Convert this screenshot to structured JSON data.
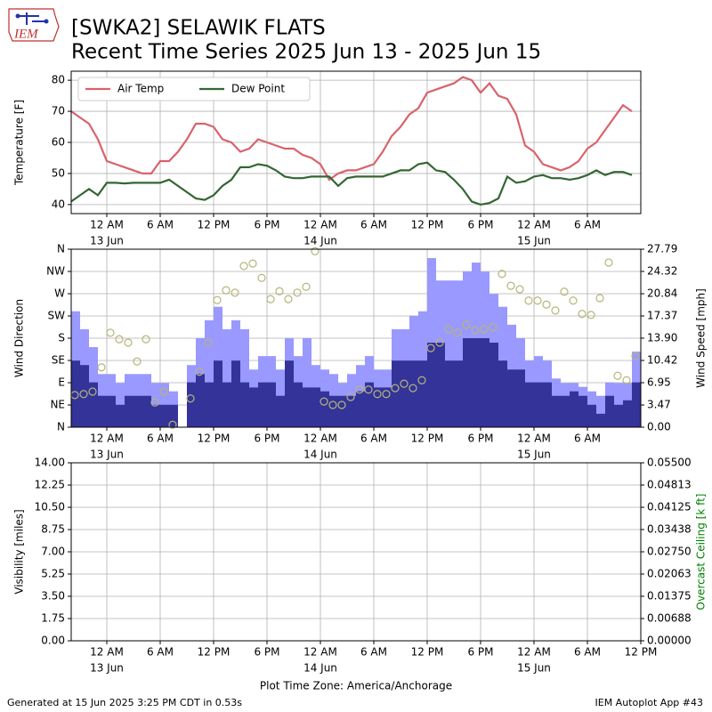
{
  "title": [
    "[SWKA2] SELAWIK FLATS",
    "Recent Time Series 2025 Jun 13 - 2025 Jun 15"
  ],
  "logo_text": "IEM",
  "footer": {
    "left": "Generated at 15 Jun 2025 3:25 PM CDT in 0.53s",
    "right": "IEM Autoplot App #43"
  },
  "chart_data": [
    {
      "type": "line",
      "ylabel": "Temperature [F]",
      "legend": "upper left",
      "grid": true,
      "xlim": [
        "2025-06-12T20:00",
        "2025-06-15T12:00"
      ],
      "xticks": [
        {
          "value": "2025-06-13T00:00",
          "label": "12 AM",
          "sublabel": "13 Jun"
        },
        {
          "value": "2025-06-13T06:00",
          "label": "6 AM"
        },
        {
          "value": "2025-06-13T12:00",
          "label": "12 PM"
        },
        {
          "value": "2025-06-13T18:00",
          "label": "6 PM"
        },
        {
          "value": "2025-06-14T00:00",
          "label": "12 AM",
          "sublabel": "14 Jun"
        },
        {
          "value": "2025-06-14T06:00",
          "label": "6 AM"
        },
        {
          "value": "2025-06-14T12:00",
          "label": "12 PM"
        },
        {
          "value": "2025-06-14T18:00",
          "label": "6 PM"
        },
        {
          "value": "2025-06-15T00:00",
          "label": "12 AM",
          "sublabel": "15 Jun"
        },
        {
          "value": "2025-06-15T06:00",
          "label": "6 AM"
        }
      ],
      "ylim": [
        37.1,
        82.9
      ],
      "yticks": [
        40,
        50,
        60,
        70,
        80
      ],
      "x": [
        "2025-06-12T20:00",
        "2025-06-12T21:00",
        "2025-06-12T22:00",
        "2025-06-12T23:00",
        "2025-06-13T00:00",
        "2025-06-13T01:00",
        "2025-06-13T02:00",
        "2025-06-13T03:00",
        "2025-06-13T04:00",
        "2025-06-13T05:00",
        "2025-06-13T06:00",
        "2025-06-13T07:00",
        "2025-06-13T08:00",
        "2025-06-13T09:00",
        "2025-06-13T10:00",
        "2025-06-13T11:00",
        "2025-06-13T12:00",
        "2025-06-13T13:00",
        "2025-06-13T14:00",
        "2025-06-13T15:00",
        "2025-06-13T16:00",
        "2025-06-13T17:00",
        "2025-06-13T18:00",
        "2025-06-13T19:00",
        "2025-06-13T20:00",
        "2025-06-13T21:00",
        "2025-06-13T22:00",
        "2025-06-13T23:00",
        "2025-06-14T00:00",
        "2025-06-14T01:00",
        "2025-06-14T02:00",
        "2025-06-14T03:00",
        "2025-06-14T04:00",
        "2025-06-14T05:00",
        "2025-06-14T06:00",
        "2025-06-14T07:00",
        "2025-06-14T08:00",
        "2025-06-14T09:00",
        "2025-06-14T10:00",
        "2025-06-14T11:00",
        "2025-06-14T12:00",
        "2025-06-14T13:00",
        "2025-06-14T14:00",
        "2025-06-14T15:00",
        "2025-06-14T16:00",
        "2025-06-14T17:00",
        "2025-06-14T18:00",
        "2025-06-14T19:00",
        "2025-06-14T20:00",
        "2025-06-14T21:00",
        "2025-06-14T22:00",
        "2025-06-14T23:00",
        "2025-06-15T00:00",
        "2025-06-15T01:00",
        "2025-06-15T02:00",
        "2025-06-15T03:00",
        "2025-06-15T04:00",
        "2025-06-15T05:00",
        "2025-06-15T06:00",
        "2025-06-15T07:00",
        "2025-06-15T08:00",
        "2025-06-15T09:00",
        "2025-06-15T10:00",
        "2025-06-15T11:00"
      ],
      "series": [
        {
          "name": "Air Temp",
          "color": "#d9626b",
          "values": [
            70,
            68,
            66,
            61,
            54,
            53,
            52,
            51,
            50,
            50,
            54,
            54,
            57,
            61,
            66,
            66,
            65,
            61,
            60,
            57,
            58,
            61,
            60,
            59,
            58,
            58,
            56,
            55,
            53,
            48,
            50,
            51,
            51,
            52,
            53,
            57,
            62,
            65,
            69,
            71,
            76,
            77,
            78,
            79,
            81,
            80,
            76,
            79,
            75,
            74,
            69,
            59,
            57,
            53,
            52,
            51,
            52,
            54,
            58,
            60,
            64,
            68,
            72,
            70
          ]
        },
        {
          "name": "Dew Point",
          "color": "#336633",
          "values": [
            41,
            43,
            45,
            43,
            47,
            47,
            46.8,
            47,
            47,
            47,
            47,
            48,
            46,
            44,
            42,
            41.5,
            43,
            46,
            48,
            52,
            52,
            53,
            52.5,
            51,
            49,
            48.5,
            48.5,
            49,
            49,
            49,
            46,
            48.5,
            49,
            49,
            49,
            49,
            50,
            51,
            51,
            53,
            53.5,
            51,
            50.5,
            48,
            45,
            41,
            40,
            40.5,
            42,
            49,
            47,
            47.5,
            49,
            49.5,
            48.5,
            48.5,
            48,
            48.5,
            49.5,
            51,
            49.5,
            50.5,
            50.5,
            49.5
          ]
        }
      ]
    },
    {
      "type": "wind",
      "ylabel": "Wind Direction",
      "y2label": "Wind Speed [mph]",
      "grid": true,
      "xlim": [
        "2025-06-12T20:00",
        "2025-06-15T12:00"
      ],
      "xticks": [
        {
          "value": "2025-06-13T00:00",
          "label": "12 AM",
          "sublabel": "13 Jun"
        },
        {
          "value": "2025-06-13T06:00",
          "label": "6 AM"
        },
        {
          "value": "2025-06-13T12:00",
          "label": "12 PM"
        },
        {
          "value": "2025-06-13T18:00",
          "label": "6 PM"
        },
        {
          "value": "2025-06-14T00:00",
          "label": "12 AM",
          "sublabel": "14 Jun"
        },
        {
          "value": "2025-06-14T06:00",
          "label": "6 AM"
        },
        {
          "value": "2025-06-14T12:00",
          "label": "12 PM"
        },
        {
          "value": "2025-06-14T18:00",
          "label": "6 PM"
        },
        {
          "value": "2025-06-15T00:00",
          "label": "12 AM",
          "sublabel": "15 Jun"
        },
        {
          "value": "2025-06-15T06:00",
          "label": "6 AM"
        }
      ],
      "ylim": [
        0,
        360
      ],
      "yticks": [
        {
          "value": 0,
          "label": "N"
        },
        {
          "value": 45,
          "label": "NE"
        },
        {
          "value": 90,
          "label": "E"
        },
        {
          "value": 135,
          "label": "SE"
        },
        {
          "value": 180,
          "label": "S"
        },
        {
          "value": 225,
          "label": "SW"
        },
        {
          "value": 270,
          "label": "W"
        },
        {
          "value": 315,
          "label": "NW"
        },
        {
          "value": 360,
          "label": "N"
        }
      ],
      "y2lim": [
        0,
        27.79
      ],
      "y2ticks": [
        {
          "value": 0,
          "label": "0.00"
        },
        3.47,
        6.95,
        10.42,
        {
          "value": 13.9,
          "label": "13.90"
        },
        17.37,
        20.84,
        24.32,
        27.79
      ],
      "x": [
        "2025-06-12T20:00",
        "2025-06-12T21:00",
        "2025-06-12T22:00",
        "2025-06-12T23:00",
        "2025-06-13T00:00",
        "2025-06-13T01:00",
        "2025-06-13T02:00",
        "2025-06-13T03:00",
        "2025-06-13T04:00",
        "2025-06-13T05:00",
        "2025-06-13T06:00",
        "2025-06-13T07:00",
        "2025-06-13T08:00",
        "2025-06-13T09:00",
        "2025-06-13T10:00",
        "2025-06-13T11:00",
        "2025-06-13T12:00",
        "2025-06-13T13:00",
        "2025-06-13T14:00",
        "2025-06-13T15:00",
        "2025-06-13T16:00",
        "2025-06-13T17:00",
        "2025-06-13T18:00",
        "2025-06-13T19:00",
        "2025-06-13T20:00",
        "2025-06-13T21:00",
        "2025-06-13T22:00",
        "2025-06-13T23:00",
        "2025-06-14T00:00",
        "2025-06-14T01:00",
        "2025-06-14T02:00",
        "2025-06-14T03:00",
        "2025-06-14T04:00",
        "2025-06-14T05:00",
        "2025-06-14T06:00",
        "2025-06-14T07:00",
        "2025-06-14T08:00",
        "2025-06-14T09:00",
        "2025-06-14T10:00",
        "2025-06-14T11:00",
        "2025-06-14T12:00",
        "2025-06-14T13:00",
        "2025-06-14T14:00",
        "2025-06-14T15:00",
        "2025-06-14T16:00",
        "2025-06-14T17:00",
        "2025-06-14T18:00",
        "2025-06-14T19:00",
        "2025-06-14T20:00",
        "2025-06-14T21:00",
        "2025-06-14T22:00",
        "2025-06-14T23:00",
        "2025-06-15T00:00",
        "2025-06-15T01:00",
        "2025-06-15T02:00",
        "2025-06-15T03:00",
        "2025-06-15T04:00",
        "2025-06-15T05:00",
        "2025-06-15T06:00",
        "2025-06-15T07:00",
        "2025-06-15T08:00",
        "2025-06-15T09:00",
        "2025-06-15T10:00",
        "2025-06-15T11:00"
      ],
      "series": [
        {
          "kind": "bar",
          "axis": "y2",
          "color": "#9999ff",
          "values": [
            18.1,
            15.3,
            12.5,
            8.3,
            8.3,
            6.9,
            8.3,
            8.3,
            8.3,
            6.9,
            6.9,
            5.6,
            null,
            9.7,
            13.9,
            16.7,
            18.8,
            15.3,
            16.7,
            15.3,
            9,
            11.1,
            11.1,
            9,
            13.9,
            11.1,
            13.9,
            9.7,
            9,
            8.3,
            6.9,
            8.3,
            9.7,
            11.1,
            9,
            9,
            15.3,
            15.3,
            17.4,
            18.1,
            26.4,
            22.9,
            22.9,
            22.9,
            24.3,
            25.7,
            24.3,
            20.8,
            18.8,
            16,
            13.9,
            10.4,
            11.1,
            10.4,
            7.6,
            6.9,
            6.9,
            6.3,
            5.6,
            4.9,
            7,
            6.9,
            6.9,
            11.8
          ]
        },
        {
          "kind": "bar",
          "axis": "y2",
          "color": "#333399",
          "values": [
            10.4,
            9.7,
            7,
            4.9,
            4.9,
            3.5,
            4.9,
            4.9,
            4.9,
            3.5,
            3.5,
            3.5,
            null,
            7,
            8.3,
            7,
            10.4,
            7,
            10.4,
            7,
            6.2,
            7,
            7,
            4.9,
            10.4,
            7,
            6.2,
            6.2,
            5.6,
            4.9,
            4.9,
            4.9,
            5.6,
            7,
            6.2,
            6.2,
            10.4,
            10.4,
            10.4,
            10.4,
            13.2,
            13.2,
            10.4,
            10.4,
            13.9,
            13.9,
            13.9,
            13.2,
            10.4,
            9,
            9,
            7,
            7,
            7,
            4.9,
            4.9,
            5.6,
            4.9,
            3.5,
            2.1,
            4.9,
            3.5,
            4.2,
            7
          ]
        },
        {
          "kind": "scatter",
          "axis": "y",
          "color": "#b5b57a",
          "values": [
            65,
            67,
            72,
            121,
            191,
            178,
            171,
            133,
            178,
            50,
            72,
            5,
            null,
            58,
            112,
            171,
            257,
            277,
            272,
            326,
            331,
            302,
            259,
            275,
            259,
            272,
            284,
            356,
            52,
            45,
            45,
            61,
            76,
            76,
            67,
            67,
            79,
            88,
            79,
            95,
            160,
            171,
            198,
            191,
            207,
            196,
            198,
            202,
            310,
            286,
            279,
            256,
            256,
            248,
            236,
            274,
            256,
            229,
            227,
            261,
            333,
            104,
            95,
            144
          ]
        }
      ]
    },
    {
      "type": "line",
      "ylabel": "Visibility [miles]",
      "y2label": "Overcast Ceiling [k ft]",
      "y2label_color": "#008000",
      "grid": true,
      "xlabel": "Plot Time Zone: America/Anchorage",
      "xlim": [
        "2025-06-12T20:00",
        "2025-06-15T12:00"
      ],
      "xticks": [
        {
          "value": "2025-06-13T00:00",
          "label": "12 AM",
          "sublabel": "13 Jun"
        },
        {
          "value": "2025-06-13T06:00",
          "label": "6 AM"
        },
        {
          "value": "2025-06-13T12:00",
          "label": "12 PM"
        },
        {
          "value": "2025-06-13T18:00",
          "label": "6 PM"
        },
        {
          "value": "2025-06-14T00:00",
          "label": "12 AM",
          "sublabel": "14 Jun"
        },
        {
          "value": "2025-06-14T06:00",
          "label": "6 AM"
        },
        {
          "value": "2025-06-14T12:00",
          "label": "12 PM"
        },
        {
          "value": "2025-06-14T18:00",
          "label": "6 PM"
        },
        {
          "value": "2025-06-15T00:00",
          "label": "12 AM",
          "sublabel": "15 Jun"
        },
        {
          "value": "2025-06-15T06:00",
          "label": "6 AM"
        },
        {
          "value": "2025-06-15T12:00",
          "label": "12 PM"
        }
      ],
      "ylim": [
        0,
        14
      ],
      "yticks": [
        {
          "value": 0,
          "label": "0.00"
        },
        1.75,
        {
          "value": 3.5,
          "label": "3.50"
        },
        5.25,
        {
          "value": 7,
          "label": "7.00"
        },
        8.75,
        {
          "value": 10.5,
          "label": "10.50"
        },
        12.25,
        {
          "value": 14,
          "label": "14.00"
        }
      ],
      "y2lim": [
        0,
        0.055
      ],
      "y2ticks": [
        {
          "value": 0,
          "label": "0.00000"
        },
        {
          "value": 0.006875,
          "label": "0.00688"
        },
        {
          "value": 0.01375,
          "label": "0.01375"
        },
        {
          "value": 0.020625,
          "label": "0.02063"
        },
        {
          "value": 0.0275,
          "label": "0.02750"
        },
        {
          "value": 0.034375,
          "label": "0.03438"
        },
        {
          "value": 0.04125,
          "label": "0.04125"
        },
        {
          "value": 0.048125,
          "label": "0.04813"
        },
        {
          "value": 0.055,
          "label": "0.05500"
        }
      ],
      "x": [],
      "series": []
    }
  ]
}
